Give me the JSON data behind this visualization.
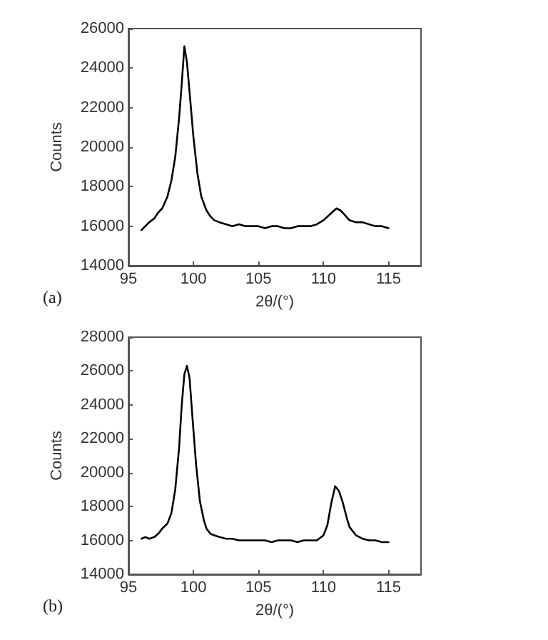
{
  "chart_data": [
    {
      "type": "line",
      "xlabel": "2θ/(°)",
      "ylabel": "Counts",
      "annotations": [
        "(a)"
      ],
      "xlim": [
        95,
        117.5
      ],
      "xticks": [
        95,
        100,
        105,
        110,
        115
      ],
      "ylim": [
        14000,
        26000
      ],
      "yticks": [
        14000,
        16000,
        18000,
        20000,
        22000,
        24000,
        26000
      ],
      "marker": "none",
      "line_style": "solid",
      "series": [
        {
          "color": "#000000",
          "x": [
            96,
            96.3,
            96.6,
            97,
            97.3,
            97.6,
            98,
            98.3,
            98.6,
            98.9,
            99.1,
            99.3,
            99.5,
            99.7,
            100,
            100.3,
            100.6,
            101,
            101.3,
            101.6,
            102,
            102.5,
            103,
            103.5,
            104,
            104.5,
            105,
            105.5,
            106,
            106.5,
            107,
            107.5,
            108,
            108.5,
            109,
            109.5,
            110,
            110.5,
            111,
            111.3,
            111.6,
            112,
            112.5,
            113,
            113.5,
            114,
            114.5,
            115
          ],
          "values": [
            15800,
            16000,
            16200,
            16400,
            16700,
            16900,
            17500,
            18300,
            19500,
            21500,
            23200,
            25100,
            24300,
            22800,
            20500,
            18700,
            17500,
            16800,
            16500,
            16300,
            16200,
            16100,
            16000,
            16100,
            16000,
            16000,
            16000,
            15900,
            16000,
            16000,
            15900,
            15900,
            16000,
            16000,
            16000,
            16100,
            16300,
            16600,
            16900,
            16800,
            16600,
            16300,
            16200,
            16200,
            16100,
            16000,
            16000,
            15900
          ]
        }
      ]
    },
    {
      "type": "line",
      "xlabel": "2θ/(°)",
      "ylabel": "Counts",
      "annotations": [
        "(b)"
      ],
      "xlim": [
        95,
        117.5
      ],
      "xticks": [
        95,
        100,
        105,
        110,
        115
      ],
      "ylim": [
        14000,
        28000
      ],
      "yticks": [
        14000,
        16000,
        18000,
        20000,
        22000,
        24000,
        26000,
        28000
      ],
      "marker": "none",
      "line_style": "solid",
      "series": [
        {
          "color": "#000000",
          "x": [
            96,
            96.3,
            96.6,
            97,
            97.3,
            97.6,
            98,
            98.3,
            98.6,
            98.9,
            99.1,
            99.3,
            99.5,
            99.7,
            99.9,
            100.2,
            100.5,
            100.8,
            101,
            101.3,
            101.6,
            102,
            102.5,
            103,
            103.5,
            104,
            104.5,
            105,
            105.5,
            106,
            106.5,
            107,
            107.5,
            108,
            108.5,
            109,
            109.5,
            110,
            110.3,
            110.6,
            110.9,
            111.2,
            111.5,
            111.8,
            112,
            112.5,
            113,
            113.5,
            114,
            114.5,
            115
          ],
          "values": [
            16100,
            16200,
            16100,
            16200,
            16400,
            16700,
            17000,
            17600,
            19000,
            21500,
            24000,
            25800,
            26300,
            25600,
            23500,
            20500,
            18300,
            17200,
            16700,
            16400,
            16300,
            16200,
            16100,
            16100,
            16000,
            16000,
            16000,
            16000,
            16000,
            15900,
            16000,
            16000,
            16000,
            15900,
            16000,
            16000,
            16000,
            16300,
            16900,
            18200,
            19200,
            18900,
            18200,
            17300,
            16800,
            16300,
            16100,
            16000,
            16000,
            15900,
            15900
          ]
        }
      ]
    }
  ]
}
